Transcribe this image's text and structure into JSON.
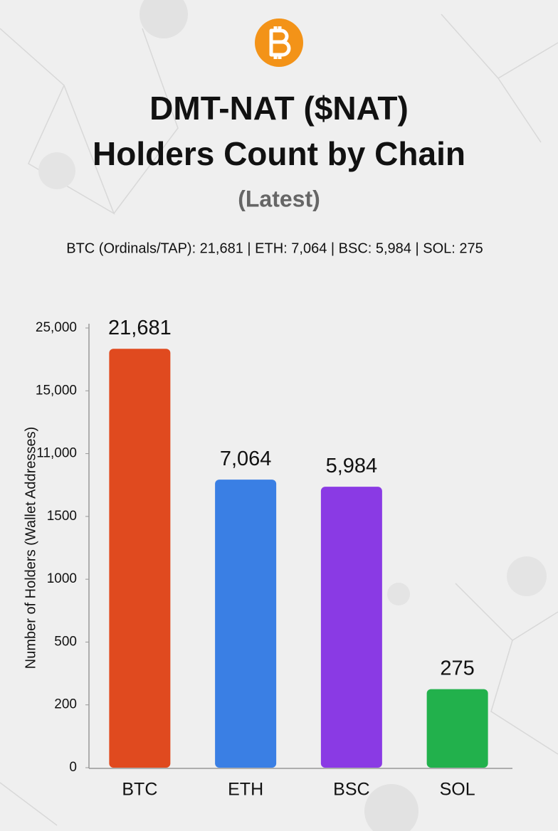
{
  "chart_data": {
    "type": "bar",
    "title_lines": [
      "DMT-NAT ($NAT)",
      "Holders Count by Chain"
    ],
    "subtitle": "(Latest)",
    "summary": "BTC (Ordinals/TAP): 21,681 | ETH: 7,064 | BSC: 5,984 | SOL: 275",
    "y_label": "Number of Holders (Wallet Addresses)",
    "categories": [
      "BTC",
      "ETH",
      "BSC",
      "SOL"
    ],
    "values": [
      21681,
      7064,
      5984,
      275
    ],
    "value_labels": [
      "21,681",
      "7,064",
      "5,984",
      "275"
    ],
    "colors": [
      "#e04a1f",
      "#3a7fe4",
      "#8a3ae4",
      "#22b14c"
    ],
    "ylim": [
      0,
      25000
    ],
    "yticks": [
      0,
      200,
      500,
      1000,
      1500,
      {
        "value": 11000,
        "label": "11,000"
      },
      {
        "value": 15000,
        "label": "15,000"
      },
      {
        "value": 25000,
        "label": "25,000"
      }
    ],
    "y_scale": "piecewise-even-ticks"
  }
}
